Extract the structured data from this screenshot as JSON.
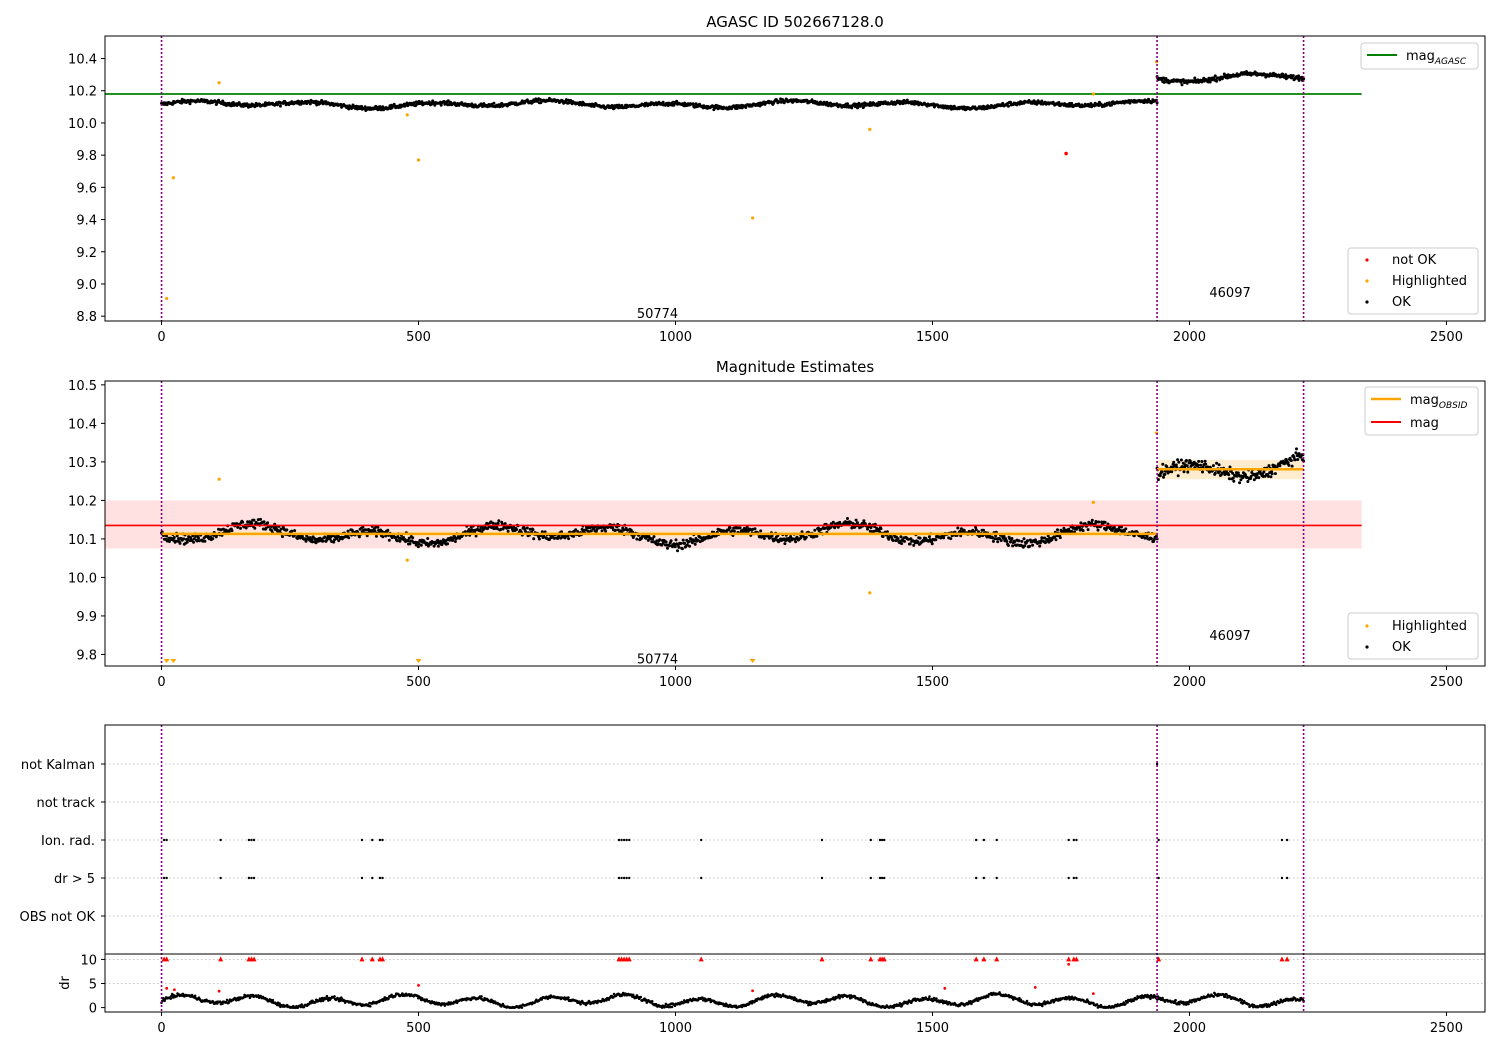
{
  "chart_data": [
    {
      "type": "scatter",
      "title": "AGASC ID 502667128.0",
      "xlim": [
        -110,
        2575
      ],
      "ylim": [
        8.77,
        10.54
      ],
      "xticks": [
        0,
        500,
        1000,
        1500,
        2000,
        2500
      ],
      "yticks": [
        8.8,
        9.0,
        9.2,
        9.4,
        9.6,
        9.8,
        10.0,
        10.2,
        10.4
      ],
      "ytick_labels": [
        "8.8",
        "9.0",
        "9.2",
        "9.4",
        "9.6",
        "9.8",
        "10.0",
        "10.2",
        "10.4"
      ],
      "xtick_labels": [
        "0",
        "500",
        "1000",
        "1500",
        "2000",
        "2500"
      ],
      "obsid_boundaries": [
        0,
        1937,
        2222
      ],
      "obsid_labels": [
        {
          "text": "50774",
          "x": 965,
          "y": 8.82
        },
        {
          "text": "46097",
          "x": 2079,
          "y": 8.95
        }
      ],
      "hlines": [
        {
          "name": "mag_AGASC",
          "y": 10.18,
          "x": [
            -110,
            2335
          ],
          "color": "#008000"
        }
      ],
      "ok_segments": [
        {
          "x": [
            0,
            1937
          ],
          "base": 10.115,
          "amp": 0.025,
          "noise": 0.012,
          "n": 1400
        },
        {
          "x": [
            1937,
            2222
          ],
          "base": 10.285,
          "amp": 0.03,
          "noise": 0.014,
          "n": 230
        }
      ],
      "highlighted_points": [
        {
          "x": 10,
          "y": 8.91
        },
        {
          "x": 23,
          "y": 9.66
        },
        {
          "x": 112,
          "y": 10.25
        },
        {
          "x": 478,
          "y": 10.05
        },
        {
          "x": 500,
          "y": 9.77
        },
        {
          "x": 1150,
          "y": 9.41
        },
        {
          "x": 1378,
          "y": 9.96
        },
        {
          "x": 1813,
          "y": 10.18
        },
        {
          "x": 1936,
          "y": 10.38
        }
      ],
      "not_ok_points": [
        {
          "x": 1760,
          "y": 9.81
        }
      ],
      "legend_top": [
        "mag",
        "AGASC"
      ],
      "legend_bottom": [
        "not OK",
        "Highlighted",
        "OK"
      ],
      "colors": {
        "ok": "#000000",
        "highlighted": "#ffa500",
        "not_ok": "#ff0000",
        "agasc": "#008000",
        "boundary": "#800080"
      }
    },
    {
      "type": "scatter",
      "title": "Magnitude Estimates",
      "xlim": [
        -110,
        2575
      ],
      "ylim": [
        9.77,
        10.51
      ],
      "xticks": [
        0,
        500,
        1000,
        1500,
        2000,
        2500
      ],
      "xtick_labels": [
        "0",
        "500",
        "1000",
        "1500",
        "2000",
        "2500"
      ],
      "yticks": [
        9.8,
        9.9,
        10.0,
        10.1,
        10.2,
        10.3,
        10.4,
        10.5
      ],
      "ytick_labels": [
        "9.8",
        "9.9",
        "10.0",
        "10.1",
        "10.2",
        "10.3",
        "10.4",
        "10.5"
      ],
      "obsid_boundaries": [
        0,
        1937,
        2222
      ],
      "obsid_labels": [
        {
          "text": "50774",
          "x": 965,
          "y": 9.79
        },
        {
          "text": "46097",
          "x": 2079,
          "y": 9.85
        }
      ],
      "mag_line": {
        "y": 10.135,
        "band": [
          10.075,
          10.2
        ],
        "x": [
          -110,
          2335
        ],
        "color": "#ff0000"
      },
      "obsid_mag": [
        {
          "x": [
            0,
            1937
          ],
          "y": 10.113,
          "band": [
            10.105,
            10.121
          ]
        },
        {
          "x": [
            1937,
            2222
          ],
          "y": 10.281,
          "band": [
            10.255,
            10.305
          ]
        }
      ],
      "ok_segments": [
        {
          "x": [
            0,
            1937
          ],
          "base": 10.112,
          "amp": 0.028,
          "noise": 0.012,
          "n": 1400
        },
        {
          "x": [
            1937,
            2222
          ],
          "base": 10.285,
          "amp": 0.035,
          "noise": 0.015,
          "n": 230
        }
      ],
      "highlighted_points": [
        {
          "x": 112,
          "y": 10.255
        },
        {
          "x": 478,
          "y": 10.045
        },
        {
          "x": 1378,
          "y": 9.96
        },
        {
          "x": 1813,
          "y": 10.195
        },
        {
          "x": 1936,
          "y": 10.375
        }
      ],
      "below_markers": [
        {
          "x": 10
        },
        {
          "x": 23
        },
        {
          "x": 500
        },
        {
          "x": 1150
        }
      ],
      "legend_top": [
        "mag",
        "OBSID",
        "mag"
      ],
      "legend_bottom": [
        "Highlighted",
        "OK"
      ],
      "colors": {
        "ok": "#000000",
        "highlighted": "#ffa500",
        "mag": "#ff0000",
        "obsid": "#ffa500",
        "band": "#ffe1e1",
        "boundary": "#800080"
      }
    },
    {
      "type": "scatter",
      "title": "",
      "xlim": [
        -110,
        2575
      ],
      "xticks": [
        0,
        500,
        1000,
        1500,
        2000,
        2500
      ],
      "xtick_labels": [
        "0",
        "500",
        "1000",
        "1500",
        "2000",
        "2500"
      ],
      "categories": [
        "not Kalman",
        "not track",
        "Ion. rad.",
        "dr > 5",
        "OBS not OK"
      ],
      "obsid_boundaries": [
        0,
        1937,
        2222
      ],
      "flag_x": [
        5,
        10,
        115,
        170,
        175,
        180,
        390,
        410,
        425,
        430,
        890,
        895,
        900,
        905,
        910,
        1050,
        1285,
        1380,
        1398,
        1402,
        1406,
        1585,
        1600,
        1625,
        1765,
        1775,
        1780,
        1940,
        2180,
        2190
      ],
      "kalman_x": [
        1937
      ],
      "dr_ylabel": "dr",
      "dr_yticks": [
        0,
        5,
        10
      ],
      "dr_ytick_labels": [
        "0",
        "5",
        "10"
      ],
      "dr_ylim": [
        -0.5,
        10.5
      ],
      "dr_red_low": [
        {
          "x": 10,
          "y": 4
        },
        {
          "x": 25,
          "y": 3.7
        },
        {
          "x": 112,
          "y": 3.4
        },
        {
          "x": 500,
          "y": 4.6
        },
        {
          "x": 1150,
          "y": 3.5
        },
        {
          "x": 1524,
          "y": 4.0
        },
        {
          "x": 1700,
          "y": 4.2
        },
        {
          "x": 1765,
          "y": 9.0
        },
        {
          "x": 1813,
          "y": 2.9
        }
      ],
      "colors": {
        "flag": "#000000",
        "dr": "#000000",
        "dr_high": "#ff0000",
        "boundary": "#800080"
      }
    }
  ]
}
